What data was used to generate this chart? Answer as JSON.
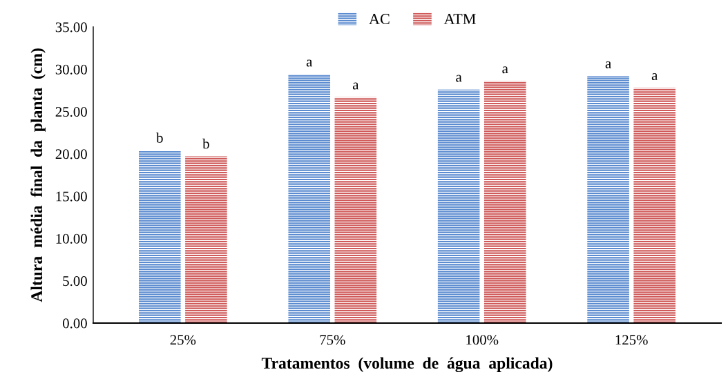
{
  "chart_data": {
    "type": "bar",
    "xlabel": "Tratamentos  (volume  de  água  aplicada)",
    "ylabel": "Altura  média  final  da  planta  (cm)",
    "categories": [
      "25%",
      "75%",
      "100%",
      "125%"
    ],
    "series": [
      {
        "name": "AC",
        "color": "#5b8bd0",
        "values": [
          20.4,
          29.4,
          27.6,
          29.2
        ]
      },
      {
        "name": "ATM",
        "color": "#d05a5a",
        "values": [
          19.7,
          26.7,
          28.6,
          27.8
        ]
      }
    ],
    "ylim": [
      0,
      35
    ],
    "yticks": [
      {
        "value": 0,
        "label": "0.00"
      },
      {
        "value": 5,
        "label": "5.00"
      },
      {
        "value": 10,
        "label": "10.00"
      },
      {
        "value": 15,
        "label": "15.00"
      },
      {
        "value": 20,
        "label": "20.00"
      },
      {
        "value": 25,
        "label": "25.00"
      },
      {
        "value": 30,
        "label": "30.00"
      },
      {
        "value": 35,
        "label": "35.00"
      }
    ],
    "annotations": [
      {
        "text": "b",
        "x": "25%",
        "y": 20.4
      },
      {
        "text": "b",
        "x": "25%",
        "y": 19.7
      },
      {
        "text": "a",
        "x": "75%",
        "y": 29.4
      },
      {
        "text": "a",
        "x": "75%",
        "y": 26.7
      },
      {
        "text": "a",
        "x": "100%",
        "y": 27.6
      },
      {
        "text": "a",
        "x": "100%",
        "y": 28.6
      },
      {
        "text": "a",
        "x": "125%",
        "y": 29.2
      },
      {
        "text": "a",
        "x": "125%",
        "y": 27.8
      }
    ],
    "grid": false,
    "legend": "top"
  }
}
